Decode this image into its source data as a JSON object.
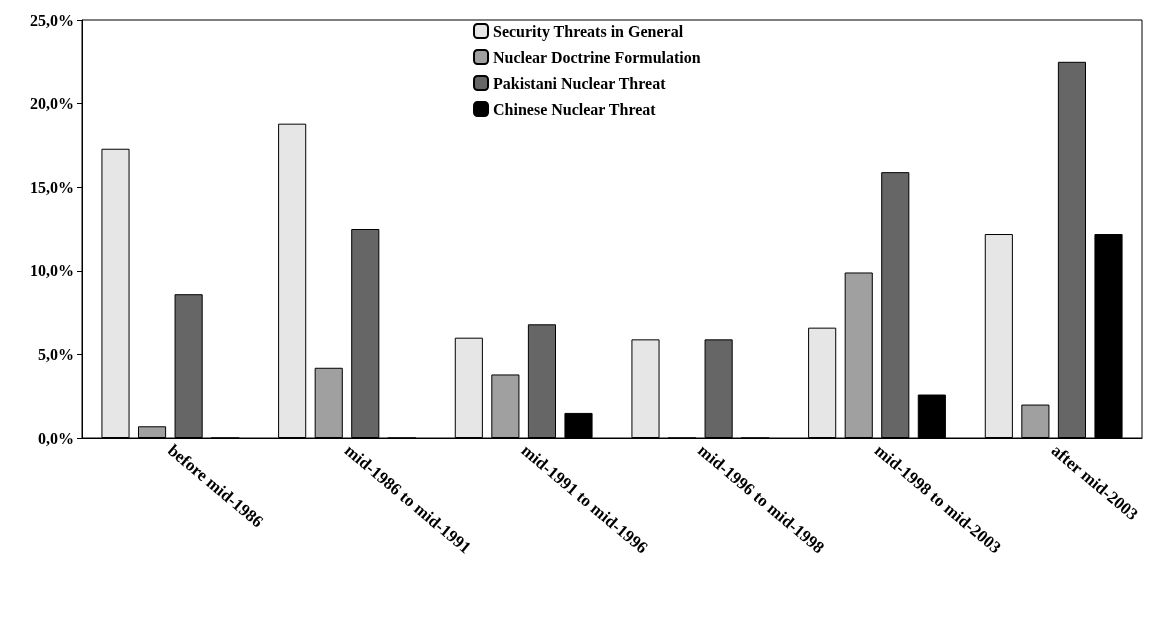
{
  "chart_data": {
    "type": "bar",
    "categories": [
      "before mid-1986",
      "mid-1986 to mid-1991",
      "mid-1991 to mid-1996",
      "mid-1996 to mid-1998",
      "mid-1998 to mid-2003",
      "after mid-2003"
    ],
    "series": [
      {
        "name": "Security Threats in General",
        "color": "#e6e6e6",
        "values": [
          17.3,
          18.8,
          6.0,
          5.9,
          6.6,
          12.2
        ]
      },
      {
        "name": "Nuclear Doctrine Formulation",
        "color": "#a0a0a0",
        "values": [
          0.7,
          4.2,
          3.8,
          0,
          9.9,
          2.0
        ]
      },
      {
        "name": "Pakistani Nuclear Threat",
        "color": "#666666",
        "values": [
          8.6,
          12.5,
          6.8,
          5.9,
          15.9,
          22.5
        ]
      },
      {
        "name": "Chinese Nuclear Threat",
        "color": "#000000",
        "values": [
          0,
          0,
          1.5,
          0,
          2.6,
          12.2
        ]
      }
    ],
    "ylim": [
      0,
      25
    ],
    "yticks": [
      {
        "value": 0,
        "label": "0,0%"
      },
      {
        "value": 5,
        "label": "5,0%"
      },
      {
        "value": 10,
        "label": "10,0%"
      },
      {
        "value": 15,
        "label": "15,0%"
      },
      {
        "value": 20,
        "label": "20,0%"
      },
      {
        "value": 25,
        "label": "25,0%"
      }
    ],
    "grid": false,
    "legend": "top center"
  }
}
